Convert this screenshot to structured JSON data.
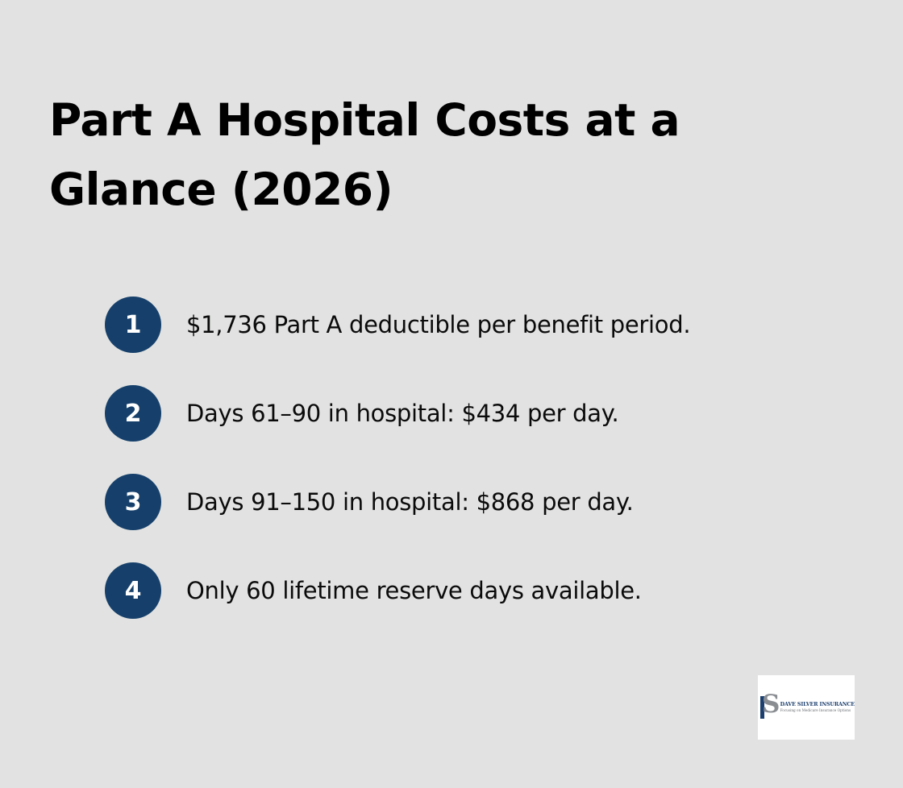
{
  "title": "Part A Hospital Costs at a Glance (2026)",
  "items": [
    {
      "number": "1",
      "text": "$1,736 Part A deductible per benefit period."
    },
    {
      "number": "2",
      "text": "Days 61–90 in hospital: $434 per day."
    },
    {
      "number": "3",
      "text": "Days 91–150 in hospital: $868 per day."
    },
    {
      "number": "4",
      "text": "Only 60 lifetime reserve days available."
    }
  ],
  "logo": {
    "mark": "S",
    "name": "DAVE SILVER INSURANCE",
    "tagline": "Focusing on Medicare Insurance Options"
  },
  "colors": {
    "background": "#e1e2e1",
    "badge": "#16406b",
    "text": "#0b0b0b"
  }
}
